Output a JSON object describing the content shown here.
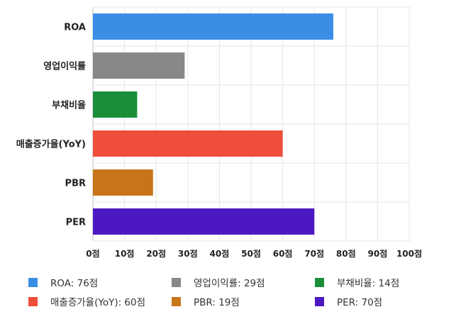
{
  "chart_data": {
    "type": "bar",
    "orientation": "horizontal",
    "categories": [
      "ROA",
      "영업이익률",
      "부채비율",
      "매출증가율(YoY)",
      "PBR",
      "PER"
    ],
    "values": [
      76,
      29,
      14,
      60,
      19,
      70
    ],
    "colors": [
      "#3a8ee6",
      "#888888",
      "#1a8f3a",
      "#ee4e3a",
      "#c87419",
      "#4b18c1"
    ],
    "xlim": [
      0,
      100
    ],
    "xticks": [
      "0점",
      "10점",
      "20점",
      "30점",
      "40점",
      "50점",
      "60점",
      "70점",
      "80점",
      "90점",
      "100점"
    ],
    "grid": true,
    "legend_position": "bottom",
    "legend": [
      "ROA: 76점",
      "영업이익률: 29점",
      "부채비율: 14점",
      "매출증가율(YoY): 60점",
      "PBR: 19점",
      "PER: 70점"
    ]
  }
}
